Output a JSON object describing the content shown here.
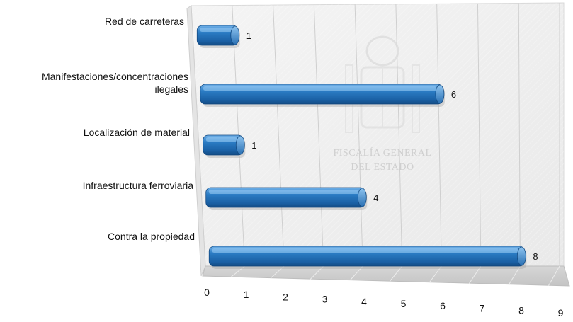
{
  "chart_data": {
    "type": "bar",
    "orientation": "horizontal",
    "categories": [
      "Red de carreteras",
      "Manifestaciones/concentraciones ilegales",
      "Localización de material",
      "Infraestructura ferroviaria",
      "Contra la propiedad"
    ],
    "category_lines": [
      [
        "Red de carreteras"
      ],
      [
        "Manifestaciones/concentraciones",
        "ilegales"
      ],
      [
        "Localización de material"
      ],
      [
        "Infraestructura ferroviaria"
      ],
      [
        "Contra la propiedad"
      ]
    ],
    "values": [
      1,
      6,
      1,
      4,
      8
    ],
    "xlim": [
      0,
      9
    ],
    "x_ticks": [
      "0",
      "1",
      "2",
      "3",
      "4",
      "5",
      "6",
      "7",
      "8",
      "9"
    ],
    "grid": true,
    "bar_color": "#1f6fb5",
    "title": "",
    "xlabel": "",
    "ylabel": ""
  },
  "watermark": {
    "lines": [
      "FISCALÍA GENERAL",
      "DEL ESTADO"
    ]
  }
}
